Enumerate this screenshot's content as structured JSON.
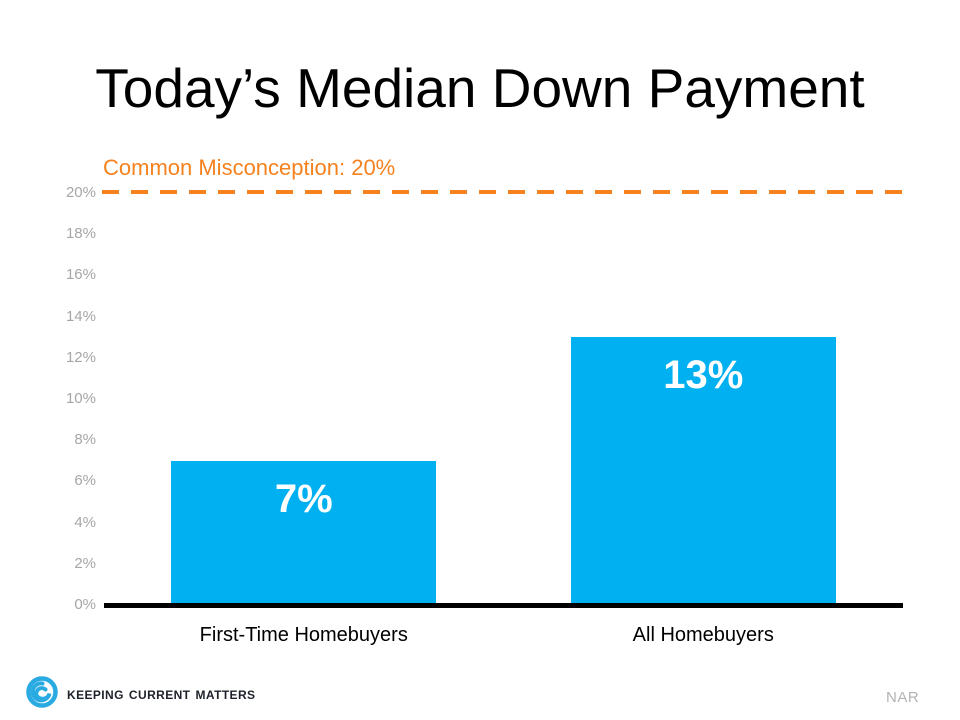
{
  "title": "Today’s Median Down Payment",
  "chart_data": {
    "type": "bar",
    "title": "Today’s Median Down Payment",
    "categories": [
      "First-Time Homebuyers",
      "All Homebuyers"
    ],
    "values": [
      7,
      13
    ],
    "value_labels": [
      "7%",
      "13%"
    ],
    "xlabel": "",
    "ylabel": "",
    "ylim": [
      0,
      20
    ],
    "ytick_step": 2,
    "yticks": [
      "20%",
      "18%",
      "16%",
      "14%",
      "12%",
      "10%",
      "8%",
      "6%",
      "4%",
      "2%",
      "0%"
    ],
    "grid": false,
    "legend": false,
    "annotation": {
      "label": "Common Misconception: 20%",
      "value": 20,
      "style": "dashed-line"
    },
    "bar_color": "#00B0F0",
    "bar_label_color": "#FFFFFF",
    "annotation_color": "#F5821F",
    "axis_color": "#000000",
    "tick_color": "#A6A6A6"
  },
  "footer": {
    "brand": "Keeping Current Matters",
    "source": "NAR"
  },
  "colors": {
    "logo_blue": "#29ABE2",
    "bar_cyan": "#00B0F0",
    "misconception_orange": "#F5821F",
    "tick_gray": "#A6A6A6"
  }
}
